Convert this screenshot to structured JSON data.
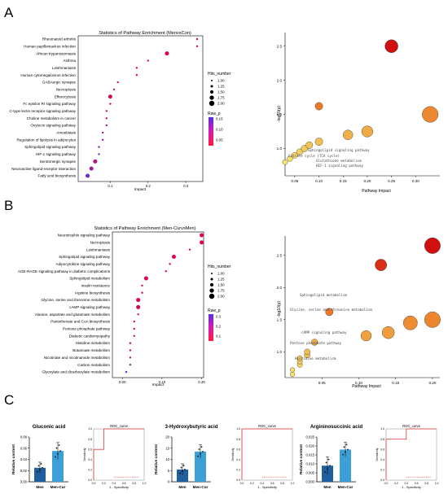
{
  "panels": {
    "A": {
      "letter": "A",
      "dot": {
        "title": "Statistics of Pathway Enrichment (MenvsCon)",
        "xlabel": "Impact",
        "xticks": [
          0.1,
          0.2,
          0.3
        ],
        "size_legend_title": "Hits_number",
        "size_legend_values": [
          "1.00",
          "1.25",
          "1.50",
          "1.75",
          "2.00"
        ],
        "color_legend_title": "Raw_p",
        "color_legend_values": [
          "0.15",
          "0.10",
          "0.05"
        ]
      },
      "bubble": {
        "xlabel": "Pathway Impact",
        "ylabel": "-log10(p)",
        "xticks": [
          "0.05",
          "0.10",
          "0.15",
          "0.20",
          "0.25",
          "0.30"
        ],
        "yticks": [
          "1.0",
          "1.5",
          "2.0",
          "2.5"
        ],
        "labels": [
          "Sphingolipid signaling pathway",
          "Citrate cycle (TCA cycle)",
          "Glutathione metabolism",
          "HIF-1 signaling pathway"
        ]
      }
    },
    "B": {
      "letter": "B",
      "dot": {
        "title": "Statistics of Pathway Enrichment (Men-CurvsMen)",
        "xlabel": "Impact",
        "xticks": [
          "0.00",
          "0.10",
          "0.20"
        ],
        "size_legend_title": "Hits_number",
        "size_legend_values": [
          "1.00",
          "1.25",
          "1.50",
          "1.75",
          "2.00"
        ],
        "color_legend_title": "Raw_p",
        "color_legend_values": [
          "0.3",
          "0.2",
          "0.1"
        ]
      },
      "bubble": {
        "xlabel": "Pathway Impact",
        "ylabel": "-log10(p)",
        "xticks": [
          "0.05",
          "0.10",
          "0.15",
          "0.20"
        ],
        "yticks": [
          "1.0",
          "1.5",
          "2.0",
          "2.5"
        ],
        "labels": [
          "Sphingolipid metabolism",
          "Glycine, serine and threonine metabolism",
          "cAMP signaling pathway",
          "Pentose phosphate pathway",
          "Histidine metabolism"
        ]
      }
    },
    "C": {
      "letter": "C",
      "bar_ylabel": "Relative content",
      "roc_title": "ROC_curve",
      "roc_xlabel": "1 - Specificity",
      "roc_ylabel": "Sensitivity",
      "roc_ticks": [
        "0.0",
        "0.2",
        "0.4",
        "0.6",
        "0.8",
        "1.0"
      ],
      "metabolites": [
        {
          "name": "Gluconic acid",
          "yticks": [
            "0.00",
            "0.02",
            "0.04",
            "0.06",
            "0.08"
          ]
        },
        {
          "name": "3-Hydroxybutyric acid",
          "yticks": [
            "0",
            "5",
            "10",
            "15",
            "20"
          ]
        },
        {
          "name": "Argininosuccinic acid",
          "yticks": [
            "0.000",
            "0.005",
            "0.010",
            "0.015",
            "0.020",
            "0.025"
          ]
        }
      ]
    }
  },
  "colors": {
    "dot_low_p": "#e8003c",
    "dot_high_p": "#5b2ee0",
    "bar_men": "#1f5f9e",
    "bar_mencur": "#3c9fd6",
    "roc_line": "#e03a3a",
    "bubble_high": "#d01010",
    "bubble_mid": "#e96a1c",
    "bubble_low": "#f6e56b"
  },
  "chart_data": [
    {
      "type": "scatter",
      "title": "Statistics of Pathway Enrichment (MenvsCon)",
      "xlabel": "Impact",
      "categories": [
        "Rheumatoid arthritis",
        "Human papillomavirus infection",
        "African trypanosomiasis",
        "Asthma",
        "Leishmaniasis",
        "Human cytomegalovirus infection",
        "GABAergic synapse",
        "Necroptosis",
        "Efferocytosis",
        "Fc epsilon RI signaling pathway",
        "C-type lectin receptor signaling pathway",
        "Choline metabolism in cancer",
        "Oxytocin signaling pathway",
        "Amoebiasis",
        "Regulation of lipolysis in adipocytes",
        "Sphingolipid signaling pathway",
        "HIF-1 signaling pathway",
        "Serotonergic synapse",
        "Neuroactive ligand-receptor interaction",
        "Fatty acid biosynthesis"
      ],
      "impact": [
        0.33,
        0.33,
        0.25,
        0.2,
        0.17,
        0.17,
        0.12,
        0.11,
        0.1,
        0.1,
        0.09,
        0.09,
        0.09,
        0.08,
        0.08,
        0.07,
        0.07,
        0.06,
        0.05,
        0.04
      ],
      "hits": [
        1,
        1,
        2,
        1,
        1,
        1,
        1,
        1,
        2,
        1,
        1,
        1,
        1,
        1,
        1,
        1,
        1,
        2,
        2,
        2
      ],
      "raw_p": [
        0.01,
        0.01,
        0.01,
        0.01,
        0.01,
        0.01,
        0.02,
        0.03,
        0.02,
        0.04,
        0.04,
        0.05,
        0.06,
        0.07,
        0.09,
        0.11,
        0.14,
        0.05,
        0.08,
        0.12
      ]
    },
    {
      "type": "scatter",
      "xlabel": "Pathway Impact",
      "ylabel": "-log10(p)",
      "x": [
        0.25,
        0.33,
        0.2,
        0.1,
        0.16,
        0.1,
        0.08,
        0.07,
        0.06,
        0.05,
        0.04,
        0.03
      ],
      "y": [
        2.5,
        1.5,
        1.25,
        1.62,
        1.2,
        1.1,
        1.05,
        1.0,
        0.95,
        0.9,
        0.85,
        0.8
      ],
      "xlim": [
        0.03,
        0.35
      ],
      "ylim": [
        0.6,
        2.7
      ]
    },
    {
      "type": "scatter",
      "title": "Statistics of Pathway Enrichment (Men-CurvsMen)",
      "xlabel": "Impact",
      "categories": [
        "Neurotrophin signaling pathway",
        "Necroptosis",
        "Leishmaniasis",
        "Sphingolipid signaling pathway",
        "Adipocytokine signaling pathway",
        "AGE-RAGE signaling pathway in diabetic complications",
        "Sphingolipid metabolism",
        "Insulin resistance",
        "Arginine biosynthesis",
        "Glycine, serine and threonine metabolism",
        "cAMP signaling pathway",
        "Alanine, aspartate and glutamate metabolism",
        "Pantothenate and CoA biosynthesis",
        "Pentose phosphate pathway",
        "Diabetic cardiomyopathy",
        "Histidine metabolism",
        "Butanoate metabolism",
        "Nicotinate and nicotinamide metabolism",
        "Carbon metabolism",
        "Glyoxylate and dicarboxylate metabolism"
      ],
      "impact": [
        0.2,
        0.2,
        0.17,
        0.13,
        0.12,
        0.11,
        0.06,
        0.05,
        0.05,
        0.04,
        0.04,
        0.04,
        0.03,
        0.03,
        0.03,
        0.02,
        0.02,
        0.02,
        0.02,
        0.01
      ],
      "hits": [
        2,
        2,
        1,
        2,
        1,
        1,
        2,
        1,
        1,
        2,
        2,
        1,
        1,
        1,
        1,
        1,
        1,
        1,
        1,
        1
      ],
      "raw_p": [
        0.01,
        0.01,
        0.02,
        0.01,
        0.02,
        0.03,
        0.02,
        0.04,
        0.04,
        0.03,
        0.04,
        0.05,
        0.06,
        0.07,
        0.08,
        0.1,
        0.12,
        0.14,
        0.17,
        0.3
      ]
    },
    {
      "type": "scatter",
      "xlabel": "Pathway Impact",
      "ylabel": "-log10(p)",
      "x": [
        0.2,
        0.13,
        0.2,
        0.17,
        0.14,
        0.11,
        0.06,
        0.04,
        0.03,
        0.03,
        0.02,
        0.02,
        0.02,
        0.01,
        0.01
      ],
      "y": [
        2.65,
        2.35,
        1.5,
        1.45,
        1.3,
        1.25,
        1.62,
        1.15,
        1.0,
        0.95,
        0.9,
        0.85,
        0.8,
        0.72,
        0.65
      ],
      "xlim": [
        0.0,
        0.21
      ],
      "ylim": [
        0.6,
        2.8
      ]
    },
    {
      "type": "bar",
      "title": "Gluconic acid",
      "categories": [
        "Men",
        "Men-Cur"
      ],
      "values": [
        0.025,
        0.055
      ],
      "errors": [
        0.01,
        0.015
      ],
      "ylabel": "Relative content",
      "ylim": [
        0,
        0.08
      ]
    },
    {
      "type": "line",
      "title": "ROC_curve",
      "xlabel": "1 - Specificity",
      "ylabel": "Sensitivity",
      "x": [
        0,
        0,
        0.2,
        0.2,
        1
      ],
      "y": [
        0,
        0.6,
        0.6,
        1,
        1
      ],
      "xlim": [
        0,
        1
      ],
      "ylim": [
        0,
        1
      ]
    },
    {
      "type": "bar",
      "title": "3-Hydroxybutyric acid",
      "categories": [
        "Men",
        "Men-Cur"
      ],
      "values": [
        5.5,
        13.5
      ],
      "errors": [
        2.5,
        3
      ],
      "ylabel": "Relative content",
      "ylim": [
        0,
        20
      ]
    },
    {
      "type": "line",
      "title": "ROC_curve",
      "xlabel": "1 - Specificity",
      "ylabel": "Sensitivity",
      "x": [
        0,
        0,
        1
      ],
      "y": [
        0,
        1,
        1
      ],
      "xlim": [
        0,
        1
      ],
      "ylim": [
        0,
        1
      ]
    },
    {
      "type": "bar",
      "title": "Argininosuccinic acid",
      "categories": [
        "Men",
        "Men-Cur"
      ],
      "values": [
        0.009,
        0.018
      ],
      "errors": [
        0.005,
        0.004
      ],
      "ylabel": "Relative content",
      "ylim": [
        0,
        0.025
      ]
    },
    {
      "type": "line",
      "title": "ROC_curve",
      "xlabel": "1 - Specificity",
      "ylabel": "Sensitivity",
      "x": [
        0,
        0,
        0.4,
        0.4,
        1
      ],
      "y": [
        0,
        0.8,
        0.8,
        1,
        1
      ],
      "xlim": [
        0,
        1
      ],
      "ylim": [
        0,
        1
      ]
    }
  ]
}
